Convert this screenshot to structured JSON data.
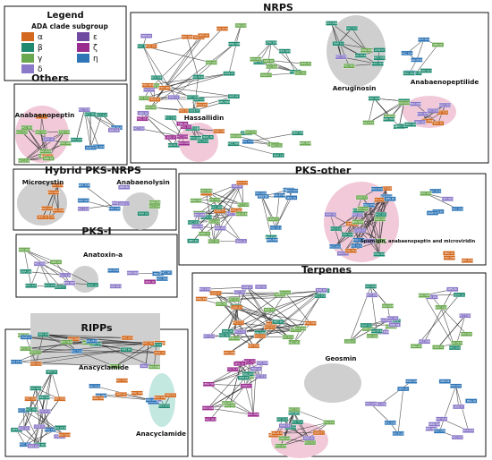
{
  "legend": {
    "title": "Legend",
    "subtitle": "ADA clade subgroup",
    "items": [
      {
        "label": "α",
        "color": "#d2691e"
      },
      {
        "label": "ε",
        "color": "#6f4aa0"
      },
      {
        "label": "β",
        "color": "#1f8a70"
      },
      {
        "label": "ζ",
        "color": "#9b2c8f"
      },
      {
        "label": "γ",
        "color": "#6aa84f"
      },
      {
        "label": "η",
        "color": "#2e75b6"
      },
      {
        "label": "δ",
        "color": "#8a78c8"
      }
    ]
  },
  "sections": {
    "nrps": "NRPS",
    "others": "Others",
    "hybrid": "Hybrid PKS-NRPS",
    "pks_other": "PKS-other",
    "pks_i": "PKS-I",
    "terpenes": "Terpenes",
    "ripps": "RIPPs"
  },
  "groups": {
    "aeruginosin": "Aeruginosin",
    "anabaenopeptilide": "Anabaenopeptilide",
    "hassallidin": "Hassallidin",
    "anabaenopeptin": "Anabaenopeptin",
    "microcystin": "Microcystin",
    "anabaenolysin": "Anabaenolysin",
    "anatoxin": "Anatoxin-a",
    "spumigin": "Spumigin, anabaenopeptin and microviridin",
    "anacyclamide": "Anacyclamide",
    "anacyclamide2": "Anacyclamide",
    "geosmin": "Geosmin"
  },
  "node_labels": [
    "UHCC 0187",
    "NIES 66",
    "UHCC 0032",
    "LEGE 07",
    "UHCC 0251",
    "PCC 7120",
    "NIES 3585",
    "CENA 508",
    "UHCC 0060",
    "NIVA 16",
    "UHCC 0313",
    "SAG 25.82"
  ]
}
